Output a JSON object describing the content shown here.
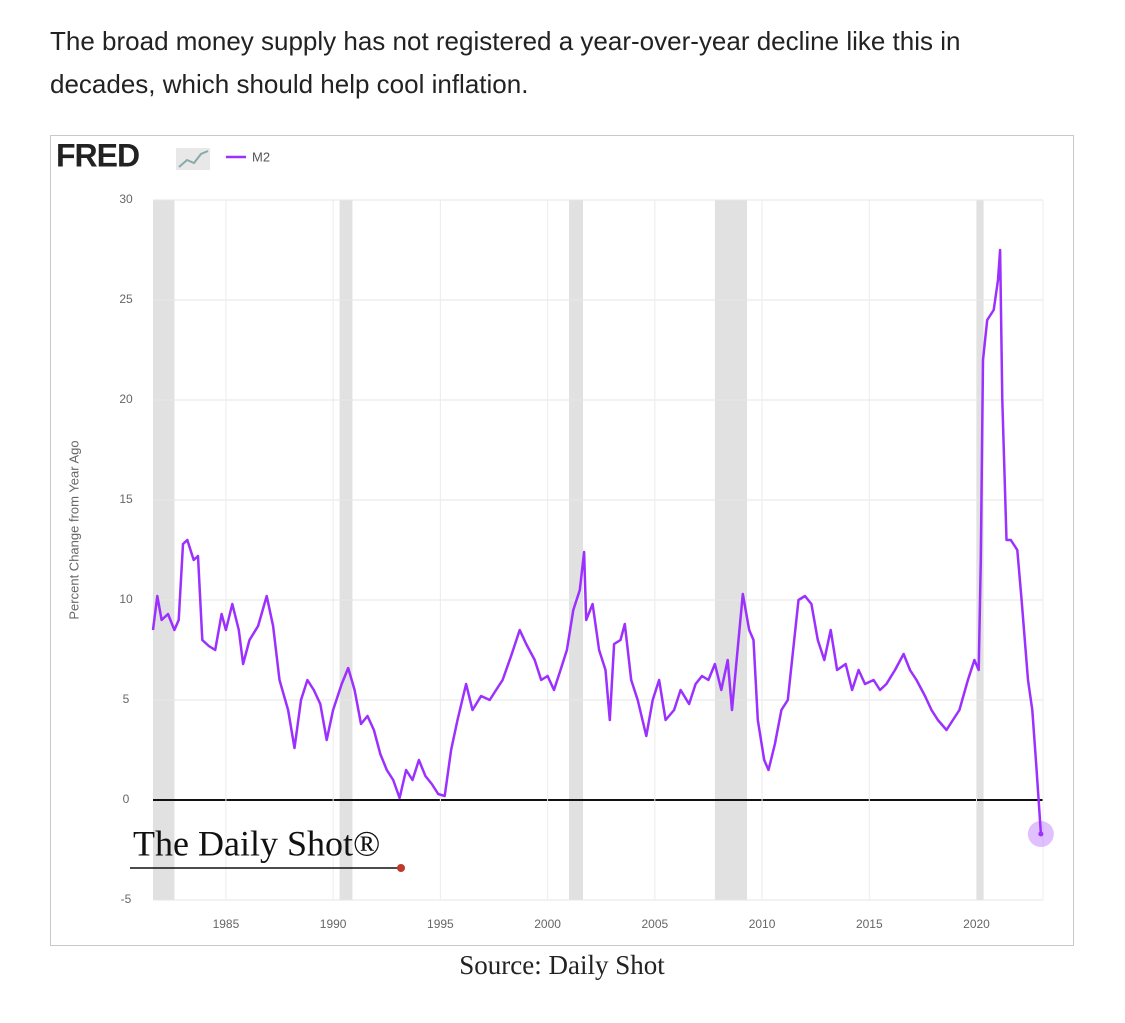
{
  "caption": [
    "The broad money supply has not registered a year-over-year decline like this in",
    "decades, which should help cool inflation."
  ],
  "source": "Source: Daily Shot",
  "chart_data": {
    "type": "line",
    "logo": "FRED",
    "watermark": "The Daily Shot®",
    "ylabel": "Percent Change from Year Ago",
    "xlim": [
      1981.6,
      2023.1
    ],
    "xticks": [
      1985,
      1990,
      1995,
      2000,
      2005,
      2010,
      2015,
      2020
    ],
    "ylim": [
      -5,
      30
    ],
    "yticks": [
      -5,
      0,
      5,
      10,
      15,
      20,
      25,
      30
    ],
    "grid": true,
    "legend": "top-left",
    "recessions": [
      [
        1981.6,
        1982.6
      ],
      [
        1990.3,
        1990.9
      ],
      [
        2001.0,
        2001.65
      ],
      [
        2007.8,
        2009.3
      ],
      [
        2020.0,
        2020.33
      ]
    ],
    "x": [
      1981.6,
      1981.8,
      1982.0,
      1982.3,
      1982.6,
      1982.8,
      1983.0,
      1983.2,
      1983.5,
      1983.7,
      1983.9,
      1984.2,
      1984.5,
      1984.8,
      1985.0,
      1985.3,
      1985.6,
      1985.8,
      1986.1,
      1986.5,
      1986.9,
      1987.2,
      1987.5,
      1987.9,
      1988.2,
      1988.5,
      1988.8,
      1989.1,
      1989.4,
      1989.7,
      1990.0,
      1990.4,
      1990.7,
      1991.0,
      1991.3,
      1991.6,
      1991.9,
      1992.2,
      1992.5,
      1992.8,
      1993.1,
      1993.4,
      1993.7,
      1994.0,
      1994.3,
      1994.6,
      1994.9,
      1995.2,
      1995.5,
      1995.8,
      1996.2,
      1996.5,
      1996.9,
      1997.3,
      1997.6,
      1997.9,
      1998.3,
      1998.7,
      1999.0,
      1999.4,
      1999.7,
      2000.0,
      2000.3,
      2000.6,
      2000.9,
      2001.2,
      2001.5,
      2001.7,
      2001.8,
      2002.1,
      2002.4,
      2002.7,
      2002.9,
      2003.1,
      2003.4,
      2003.6,
      2003.9,
      2004.2,
      2004.6,
      2004.9,
      2005.2,
      2005.5,
      2005.9,
      2006.2,
      2006.6,
      2006.9,
      2007.2,
      2007.5,
      2007.8,
      2008.1,
      2008.4,
      2008.6,
      2008.9,
      2009.1,
      2009.4,
      2009.6,
      2009.8,
      2010.1,
      2010.3,
      2010.6,
      2010.9,
      2011.2,
      2011.5,
      2011.7,
      2012.0,
      2012.3,
      2012.6,
      2012.9,
      2013.2,
      2013.5,
      2013.9,
      2014.2,
      2014.5,
      2014.8,
      2015.2,
      2015.5,
      2015.8,
      2016.2,
      2016.6,
      2016.9,
      2017.2,
      2017.6,
      2017.9,
      2018.2,
      2018.6,
      2018.9,
      2019.2,
      2019.6,
      2019.9,
      2020.1,
      2020.2,
      2020.3,
      2020.5,
      2020.8,
      2021.0,
      2021.1,
      2021.2,
      2021.4,
      2021.6,
      2021.9,
      2022.1,
      2022.4,
      2022.6,
      2022.8,
      2023.0
    ],
    "series": [
      {
        "name": "M2",
        "color": "#9b30ff",
        "values": [
          8.5,
          10.2,
          9.0,
          9.3,
          8.5,
          9.0,
          12.8,
          13.0,
          12.0,
          12.2,
          8.0,
          7.7,
          7.5,
          9.3,
          8.5,
          9.8,
          8.5,
          6.8,
          8.0,
          8.7,
          10.2,
          8.7,
          6.0,
          4.5,
          2.6,
          5.0,
          6.0,
          5.5,
          4.8,
          3.0,
          4.5,
          5.8,
          6.6,
          5.5,
          3.8,
          4.2,
          3.5,
          2.3,
          1.5,
          1.0,
          0.1,
          1.5,
          1.0,
          2.0,
          1.2,
          0.8,
          0.3,
          0.2,
          2.5,
          4.0,
          5.8,
          4.5,
          5.2,
          5.0,
          5.5,
          6.0,
          7.2,
          8.5,
          7.8,
          7.0,
          6.0,
          6.2,
          5.5,
          6.5,
          7.5,
          9.5,
          10.5,
          12.4,
          9.0,
          9.8,
          7.5,
          6.5,
          4.0,
          7.8,
          8.0,
          8.8,
          6.0,
          5.0,
          3.2,
          5.0,
          6.0,
          4.0,
          4.5,
          5.5,
          4.8,
          5.8,
          6.2,
          6.0,
          6.8,
          5.5,
          7.0,
          4.5,
          8.0,
          10.3,
          8.5,
          8.0,
          4.0,
          2.0,
          1.5,
          2.8,
          4.5,
          5.0,
          8.0,
          10.0,
          10.2,
          9.8,
          8.0,
          7.0,
          8.5,
          6.5,
          6.8,
          5.5,
          6.5,
          5.8,
          6.0,
          5.5,
          5.8,
          6.5,
          7.3,
          6.5,
          6.0,
          5.2,
          4.5,
          4.0,
          3.5,
          4.0,
          4.5,
          6.0,
          7.0,
          6.5,
          12.0,
          22.0,
          24.0,
          24.5,
          26.0,
          27.5,
          20.0,
          13.0,
          13.0,
          12.5,
          10.0,
          6.0,
          4.5,
          1.5,
          -1.7
        ]
      }
    ]
  }
}
